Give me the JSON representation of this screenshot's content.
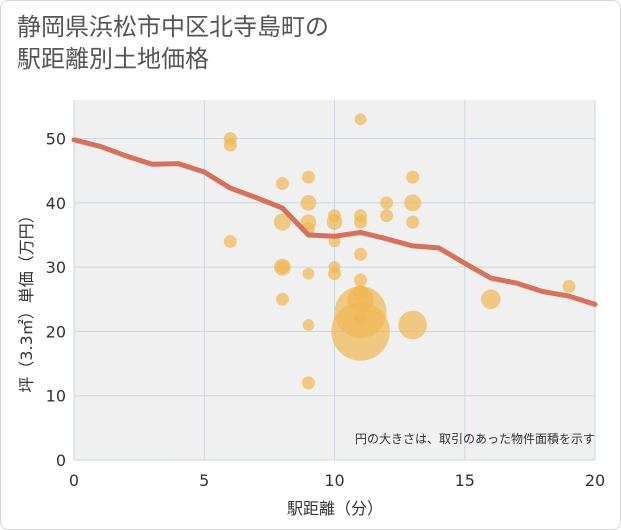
{
  "title": {
    "line1": "静岡県浜松市中区北寺島町の",
    "line2": "駅距離別土地価格"
  },
  "note": "円の大きさは、取引のあった物件面積を示す",
  "colors": {
    "bubble": "#f0b653",
    "line": "#d9705c",
    "grid": "#c9d7e3",
    "background": "#f0f0f0"
  },
  "chart_data": {
    "type": "scatter",
    "title": "静岡県浜松市中区北寺島町の駅距離別土地価格",
    "xlabel": "駅距離（分）",
    "ylabel": "坪（3.3㎡）単価（万円）",
    "xlim": [
      0,
      20
    ],
    "ylim": [
      0,
      56
    ],
    "xticks": [
      0,
      5,
      10,
      15,
      20
    ],
    "yticks": [
      0,
      10,
      20,
      30,
      40,
      50
    ],
    "grid": true,
    "points": [
      {
        "x": 6,
        "y": 50,
        "size": 1
      },
      {
        "x": 6,
        "y": 49,
        "size": 1
      },
      {
        "x": 6,
        "y": 34,
        "size": 1
      },
      {
        "x": 8,
        "y": 43,
        "size": 1
      },
      {
        "x": 8,
        "y": 37,
        "size": 1.3
      },
      {
        "x": 8,
        "y": 30,
        "size": 1.3
      },
      {
        "x": 8,
        "y": 30,
        "size": 1
      },
      {
        "x": 8,
        "y": 25,
        "size": 1
      },
      {
        "x": 9,
        "y": 44,
        "size": 1
      },
      {
        "x": 9,
        "y": 40,
        "size": 1.2
      },
      {
        "x": 9,
        "y": 37,
        "size": 1.2
      },
      {
        "x": 9,
        "y": 36,
        "size": 1
      },
      {
        "x": 9,
        "y": 29,
        "size": 0.9
      },
      {
        "x": 9,
        "y": 21,
        "size": 0.9
      },
      {
        "x": 9,
        "y": 12,
        "size": 1
      },
      {
        "x": 10,
        "y": 38,
        "size": 1
      },
      {
        "x": 10,
        "y": 37,
        "size": 1.2
      },
      {
        "x": 10,
        "y": 34,
        "size": 0.9
      },
      {
        "x": 10,
        "y": 30,
        "size": 0.9
      },
      {
        "x": 10,
        "y": 29,
        "size": 1
      },
      {
        "x": 11,
        "y": 53,
        "size": 0.9
      },
      {
        "x": 11,
        "y": 38,
        "size": 1
      },
      {
        "x": 11,
        "y": 37,
        "size": 1
      },
      {
        "x": 11,
        "y": 32,
        "size": 1
      },
      {
        "x": 11,
        "y": 28,
        "size": 1
      },
      {
        "x": 11,
        "y": 26,
        "size": 1.2
      },
      {
        "x": 11,
        "y": 25,
        "size": 2
      },
      {
        "x": 11,
        "y": 23,
        "size": 4
      },
      {
        "x": 11,
        "y": 22,
        "size": 1
      },
      {
        "x": 11,
        "y": 20,
        "size": 4.5
      },
      {
        "x": 12,
        "y": 40,
        "size": 1
      },
      {
        "x": 12,
        "y": 38,
        "size": 1
      },
      {
        "x": 13,
        "y": 44,
        "size": 1
      },
      {
        "x": 13,
        "y": 40,
        "size": 1.3
      },
      {
        "x": 13,
        "y": 37,
        "size": 1
      },
      {
        "x": 13,
        "y": 21,
        "size": 2.2
      },
      {
        "x": 16,
        "y": 25,
        "size": 1.5
      },
      {
        "x": 19,
        "y": 27,
        "size": 1
      }
    ],
    "trend_line": {
      "x": [
        0,
        1,
        2,
        3,
        4,
        5,
        6,
        7,
        8,
        9,
        10,
        11,
        12,
        13,
        14,
        15,
        16,
        17,
        18,
        19,
        20
      ],
      "y": [
        49.8,
        48.8,
        47.3,
        46,
        46.1,
        44.8,
        42.3,
        40.8,
        39.2,
        35,
        34.8,
        35.4,
        34.4,
        33.3,
        33,
        30.6,
        28.3,
        27.5,
        26.2,
        25.5,
        24.2
      ]
    }
  }
}
